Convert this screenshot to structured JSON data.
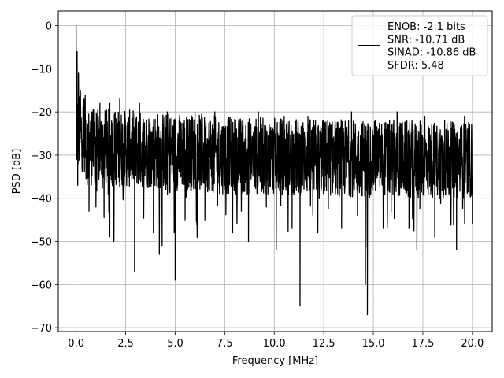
{
  "chart_data": {
    "type": "line",
    "xlabel": "Frequency [MHz]",
    "ylabel": "PSD [dB]",
    "xlim": [
      -0.9,
      21.0
    ],
    "ylim": [
      -70.9,
      3.4
    ],
    "x_ticks": [
      0.0,
      2.5,
      5.0,
      7.5,
      10.0,
      12.5,
      15.0,
      17.5,
      20.0
    ],
    "x_tick_labels": [
      "0.0",
      "2.5",
      "5.0",
      "7.5",
      "10.0",
      "12.5",
      "15.0",
      "17.5",
      "20.0"
    ],
    "y_ticks": [
      0,
      -10,
      -20,
      -30,
      -40,
      -50,
      -60,
      -70
    ],
    "y_tick_labels": [
      "0",
      "−10",
      "−20",
      "−30",
      "−40",
      "−50",
      "−60",
      "−70"
    ],
    "grid": true,
    "legend_position": "top-right",
    "series": [
      {
        "name": "ENOB: -2.1 bits\nSNR: -10.71 dB\nSINAD: -10.86 dB\nSFDR: 5.48",
        "color": "#000000",
        "x_range": [
          0.0,
          20.0
        ],
        "approx_points": [
          [
            0.0,
            0.0
          ],
          [
            0.02,
            -31
          ],
          [
            0.05,
            -6
          ],
          [
            0.08,
            -37
          ],
          [
            0.12,
            -11
          ],
          [
            0.17,
            -30
          ],
          [
            0.22,
            -15
          ],
          [
            0.3,
            -33
          ],
          [
            0.4,
            -17
          ],
          [
            0.55,
            -33
          ],
          [
            0.65,
            -43
          ],
          [
            0.8,
            -20
          ],
          [
            1.0,
            -42
          ],
          [
            1.2,
            -18
          ],
          [
            1.5,
            -35
          ],
          [
            1.7,
            -18
          ],
          [
            1.9,
            -50
          ],
          [
            2.2,
            -17
          ],
          [
            2.5,
            -30
          ],
          [
            2.95,
            -57
          ],
          [
            3.2,
            -18
          ],
          [
            3.5,
            -33
          ],
          [
            3.9,
            -48
          ],
          [
            4.2,
            -53
          ],
          [
            4.6,
            -20
          ],
          [
            5.0,
            -59
          ],
          [
            5.2,
            -22
          ],
          [
            5.5,
            -45
          ],
          [
            6.0,
            -20
          ],
          [
            6.5,
            -45
          ],
          [
            7.0,
            -20
          ],
          [
            7.5,
            -37
          ],
          [
            7.9,
            -48
          ],
          [
            8.4,
            -22
          ],
          [
            8.7,
            -50
          ],
          [
            9.2,
            -20
          ],
          [
            9.6,
            -42
          ],
          [
            10.1,
            -52
          ],
          [
            10.5,
            -21
          ],
          [
            10.9,
            -47
          ],
          [
            11.3,
            -65
          ],
          [
            11.7,
            -21
          ],
          [
            12.2,
            -48
          ],
          [
            12.7,
            -22
          ],
          [
            13.4,
            -47
          ],
          [
            13.9,
            -20
          ],
          [
            14.2,
            -44
          ],
          [
            14.6,
            -60
          ],
          [
            14.7,
            -67
          ],
          [
            15.1,
            -22
          ],
          [
            15.7,
            -47
          ],
          [
            16.2,
            -20
          ],
          [
            16.8,
            -47
          ],
          [
            17.2,
            -52
          ],
          [
            17.6,
            -21
          ],
          [
            18.1,
            -49
          ],
          [
            18.6,
            -22
          ],
          [
            19.2,
            -52
          ],
          [
            19.6,
            -21
          ],
          [
            20.0,
            -46
          ]
        ]
      }
    ]
  }
}
